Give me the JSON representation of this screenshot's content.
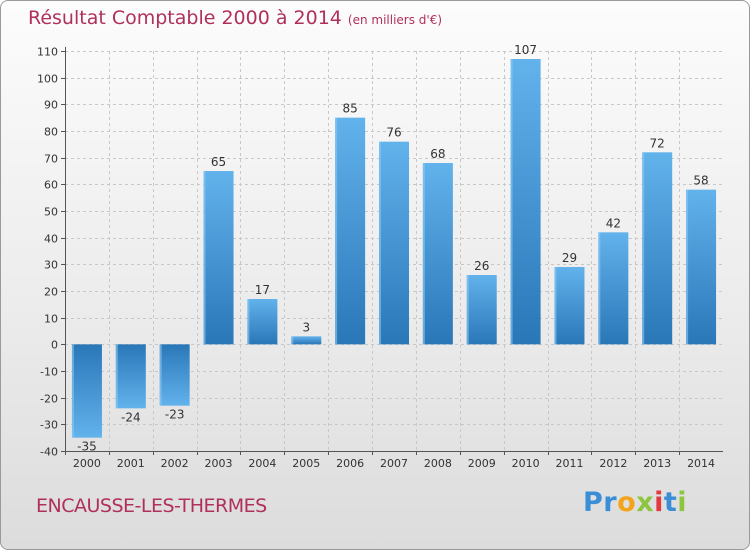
{
  "title": {
    "main": "Résultat Comptable 2000 à 2014",
    "unit": "(en milliers d'€)"
  },
  "town": "ENCAUSSE-LES-THERMES",
  "logo": {
    "text": "Proxiti",
    "letters": [
      "P",
      "r",
      "o",
      "x",
      "i",
      "t",
      "i"
    ],
    "colors": [
      "#3a8ed6",
      "#3a8ed6",
      "#f2a51a",
      "#8cc63f",
      "#e2383f",
      "#3a8ed6",
      "#8cc63f"
    ]
  },
  "chart_data": {
    "type": "bar",
    "title": "Résultat Comptable 2000 à 2014",
    "ylabel": "en milliers d'€",
    "xlabel": "",
    "categories": [
      "2000",
      "2001",
      "2002",
      "2003",
      "2004",
      "2005",
      "2006",
      "2007",
      "2008",
      "2009",
      "2010",
      "2011",
      "2012",
      "2013",
      "2014"
    ],
    "values": [
      -35,
      -24,
      -23,
      65,
      17,
      3,
      85,
      76,
      68,
      26,
      107,
      29,
      42,
      72,
      58
    ],
    "ylim": [
      -40,
      110
    ],
    "yticks": [
      -40,
      -30,
      -20,
      -10,
      0,
      10,
      20,
      30,
      40,
      50,
      60,
      70,
      80,
      90,
      100,
      110
    ],
    "grid": true,
    "bar_color": "#3f94d8",
    "bar_color_dark": "#2a77b8",
    "bar_color_light": "#62b2ec"
  }
}
